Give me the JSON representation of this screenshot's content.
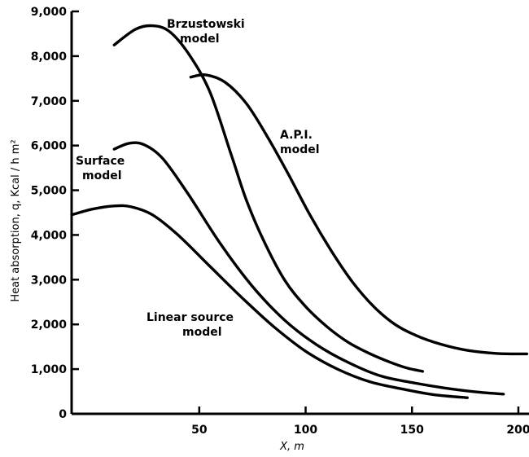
{
  "chart_data": {
    "type": "line",
    "xlabel": "X, m",
    "ylabel": "Heat absorption, q, Kcal / h m²",
    "xlim": [
      -10,
      205
    ],
    "ylim": [
      0,
      9000
    ],
    "x_ticks": [
      50,
      100,
      150,
      200
    ],
    "x_tick_labels": [
      "50",
      "100",
      "150",
      "200"
    ],
    "y_ticks": [
      0,
      1000,
      2000,
      3000,
      4000,
      5000,
      6000,
      7000,
      8000,
      9000
    ],
    "y_tick_labels": [
      "0",
      "1,000",
      "2,000",
      "3,000",
      "4,000",
      "5,000",
      "6,000",
      "7,000",
      "8,000",
      "9,000"
    ],
    "grid": false,
    "series": [
      {
        "name": "Brzustowski model",
        "label_lines": [
          "Brzustowski",
          "model"
        ],
        "points": [
          [
            10,
            8250
          ],
          [
            20,
            8600
          ],
          [
            28,
            8680
          ],
          [
            36,
            8550
          ],
          [
            45,
            8050
          ],
          [
            55,
            7200
          ],
          [
            65,
            5800
          ],
          [
            72,
            4800
          ],
          [
            80,
            3900
          ],
          [
            90,
            3000
          ],
          [
            100,
            2400
          ],
          [
            110,
            1950
          ],
          [
            120,
            1600
          ],
          [
            130,
            1350
          ],
          [
            140,
            1150
          ],
          [
            148,
            1020
          ],
          [
            155,
            950
          ]
        ]
      },
      {
        "name": "A.P.I. model",
        "label_lines": [
          "A.P.I.",
          "model"
        ],
        "points": [
          [
            46,
            7530
          ],
          [
            53,
            7580
          ],
          [
            62,
            7420
          ],
          [
            72,
            6950
          ],
          [
            82,
            6200
          ],
          [
            92,
            5350
          ],
          [
            102,
            4450
          ],
          [
            112,
            3650
          ],
          [
            122,
            2950
          ],
          [
            132,
            2400
          ],
          [
            142,
            2000
          ],
          [
            152,
            1750
          ],
          [
            164,
            1550
          ],
          [
            176,
            1420
          ],
          [
            190,
            1350
          ],
          [
            204,
            1340
          ]
        ]
      },
      {
        "name": "Surface model",
        "label_lines": [
          "Surface",
          "model"
        ],
        "points": [
          [
            10,
            5920
          ],
          [
            17,
            6050
          ],
          [
            24,
            6020
          ],
          [
            33,
            5700
          ],
          [
            45,
            4900
          ],
          [
            60,
            3800
          ],
          [
            75,
            2850
          ],
          [
            90,
            2100
          ],
          [
            105,
            1550
          ],
          [
            120,
            1150
          ],
          [
            135,
            850
          ],
          [
            150,
            700
          ],
          [
            165,
            580
          ],
          [
            180,
            490
          ],
          [
            193,
            440
          ]
        ]
      },
      {
        "name": "Linear source model",
        "label_lines": [
          "Linear source",
          "model"
        ],
        "points": [
          [
            -10,
            4450
          ],
          [
            0,
            4580
          ],
          [
            10,
            4650
          ],
          [
            18,
            4630
          ],
          [
            28,
            4450
          ],
          [
            40,
            4000
          ],
          [
            55,
            3300
          ],
          [
            70,
            2600
          ],
          [
            85,
            1950
          ],
          [
            100,
            1400
          ],
          [
            115,
            1000
          ],
          [
            130,
            720
          ],
          [
            145,
            560
          ],
          [
            160,
            430
          ],
          [
            176,
            360
          ]
        ]
      }
    ]
  }
}
